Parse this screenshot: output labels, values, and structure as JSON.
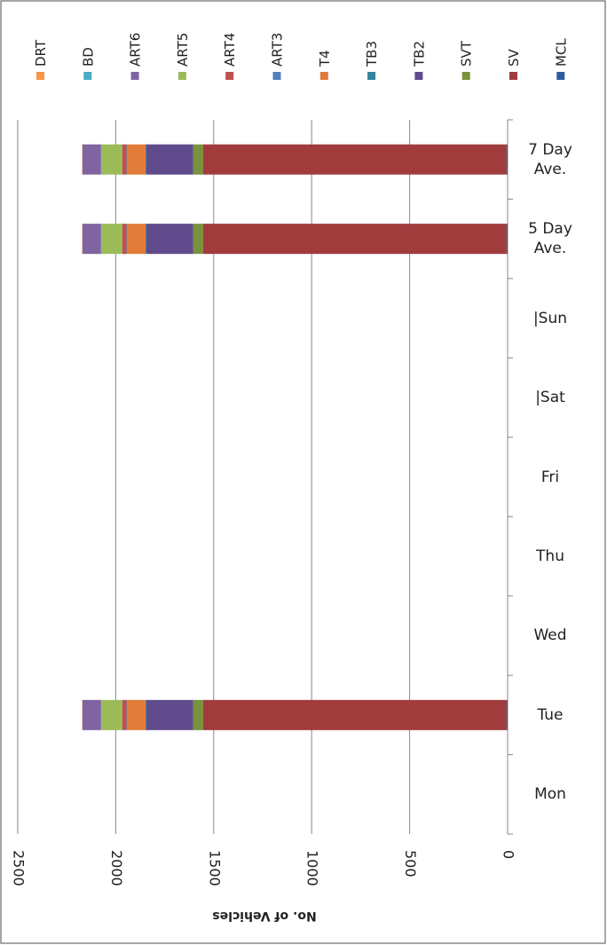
{
  "chart_data": {
    "type": "stacked_bar",
    "axis_title": "No. of Vehicles",
    "categories": [
      "7 Day Ave.",
      "5 Day Ave.",
      "|Sun",
      "|Sat",
      "Fri",
      "Thu",
      "Wed",
      "Tue",
      "Mon"
    ],
    "series": [
      {
        "name": "MCL",
        "color": "#2e5c9e",
        "values": [
          5,
          5,
          null,
          null,
          null,
          null,
          null,
          5,
          null
        ]
      },
      {
        "name": "SV",
        "color": "#a03c3c",
        "values": [
          1550,
          1550,
          null,
          null,
          null,
          null,
          null,
          1550,
          null
        ]
      },
      {
        "name": "SVT",
        "color": "#77933c",
        "values": [
          50,
          50,
          null,
          null,
          null,
          null,
          null,
          50,
          null
        ]
      },
      {
        "name": "TB2",
        "color": "#5f4b8b",
        "values": [
          240,
          240,
          null,
          null,
          null,
          null,
          null,
          240,
          null
        ]
      },
      {
        "name": "TB3",
        "color": "#31849b",
        "values": [
          3,
          3,
          null,
          null,
          null,
          null,
          null,
          3,
          null
        ]
      },
      {
        "name": "T4",
        "color": "#e07b39",
        "values": [
          95,
          95,
          null,
          null,
          null,
          null,
          null,
          95,
          null
        ]
      },
      {
        "name": "ART3",
        "color": "#4f81bd",
        "values": [
          2,
          2,
          null,
          null,
          null,
          null,
          null,
          2,
          null
        ]
      },
      {
        "name": "ART4",
        "color": "#c0504d",
        "values": [
          22,
          22,
          null,
          null,
          null,
          null,
          null,
          22,
          null
        ]
      },
      {
        "name": "ART5",
        "color": "#9bbb59",
        "values": [
          108,
          108,
          null,
          null,
          null,
          null,
          null,
          108,
          null
        ]
      },
      {
        "name": "ART6",
        "color": "#8064a2",
        "values": [
          95,
          95,
          null,
          null,
          null,
          null,
          null,
          95,
          null
        ]
      },
      {
        "name": "BD",
        "color": "#4bacc6",
        "values": [
          0,
          0,
          null,
          null,
          null,
          null,
          null,
          0,
          null
        ]
      },
      {
        "name": "DRT",
        "color": "#f79646",
        "values": [
          2,
          2,
          null,
          null,
          null,
          null,
          null,
          2,
          null
        ]
      }
    ],
    "xlim": [
      0,
      2500
    ],
    "xticks": [
      0,
      500,
      1000,
      1500,
      2000,
      2500
    ],
    "grid": true
  }
}
